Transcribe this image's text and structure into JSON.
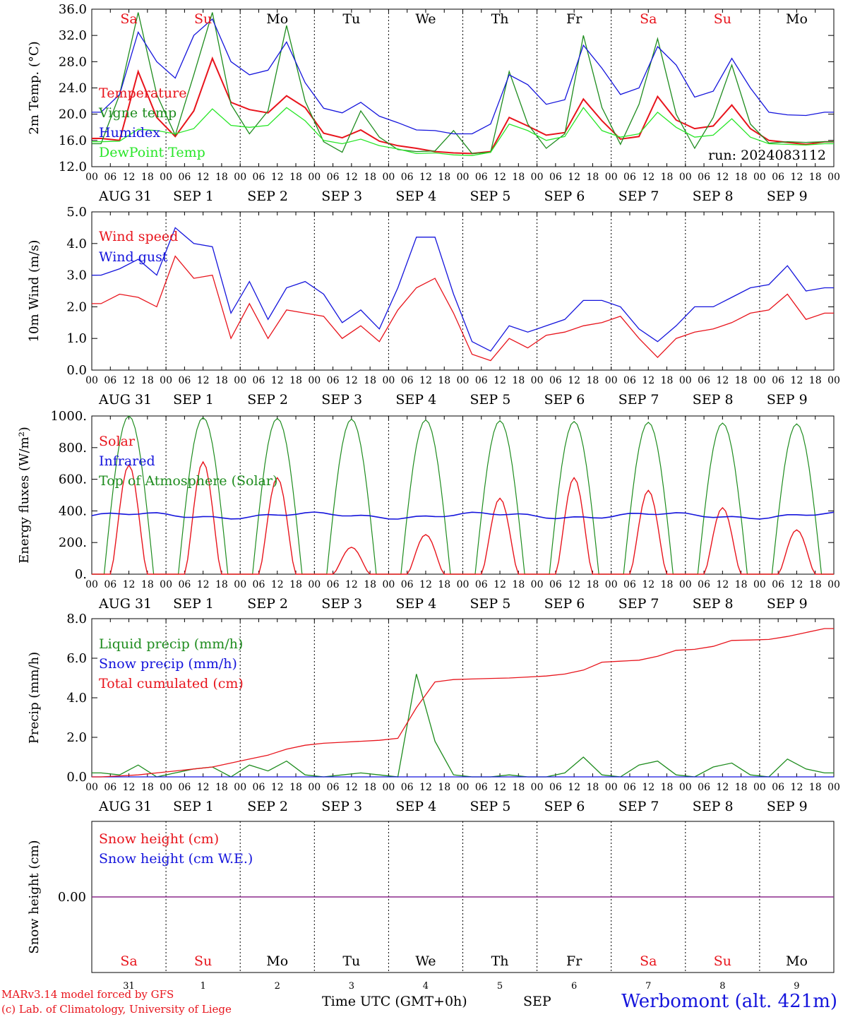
{
  "run_label": "run: 2024083112",
  "days": [
    "AUG 31",
    "SEP  1",
    "SEP  2",
    "SEP  3",
    "SEP  4",
    "SEP  5",
    "SEP  6",
    "SEP  7",
    "SEP  8",
    "SEP  9"
  ],
  "day_numbers": [
    "31",
    "1",
    "2",
    "3",
    "4",
    "5",
    "6",
    "7",
    "8",
    "9"
  ],
  "weekdays": [
    {
      "label": "Sa",
      "color": "#e8141c"
    },
    {
      "label": "Su",
      "color": "#e8141c"
    },
    {
      "label": "Mo",
      "color": "#000000"
    },
    {
      "label": "Tu",
      "color": "#000000"
    },
    {
      "label": "We",
      "color": "#000000"
    },
    {
      "label": "Th",
      "color": "#000000"
    },
    {
      "label": "Fr",
      "color": "#000000"
    },
    {
      "label": "Sa",
      "color": "#e8141c"
    },
    {
      "label": "Su",
      "color": "#e8141c"
    },
    {
      "label": "Mo",
      "color": "#000000"
    }
  ],
  "hour_ticks": [
    "00",
    "06",
    "12",
    "18"
  ],
  "footer": {
    "model_line": "MARv3.14 model forced by GFS",
    "lab_line": "(c) Lab. of Climatology, University of Liege",
    "time_label": "Time UTC (GMT+0h)",
    "month_label": "SEP",
    "station": "Werbomont (alt. 421m)"
  },
  "colors": {
    "red": "#e8141c",
    "green": "#1e8c1e",
    "blue": "#1414dc",
    "lightgreen": "#28e628",
    "purple": "#8b2a8b"
  },
  "chart_data": [
    {
      "type": "line",
      "ylabel": "2m Temp. (°C)",
      "ylim": [
        12.0,
        36.0
      ],
      "yticks": [
        "12.0",
        "16.0",
        "20.0",
        "24.0",
        "28.0",
        "32.0",
        "36.0"
      ],
      "x_start": "2024-08-31T00:00Z",
      "x_step_hours": 6,
      "series": [
        {
          "name": "Temperature",
          "color": "#e8141c",
          "values": [
            16.3,
            16.0,
            26.5,
            19.5,
            16.6,
            20.5,
            28.5,
            21.8,
            20.7,
            20.2,
            22.8,
            21.0,
            17.1,
            16.4,
            17.6,
            15.9,
            15.2,
            14.8,
            14.3,
            14.1,
            14.0,
            14.3,
            19.5,
            18.2,
            16.8,
            17.2,
            22.3,
            19.0,
            16.2,
            16.6,
            22.7,
            19.1,
            17.8,
            18.2,
            21.4,
            17.8,
            16.0,
            15.7,
            15.4,
            15.8
          ]
        },
        {
          "name": "Vigne temp",
          "color": "#1e8c1e",
          "values": [
            15.5,
            23.0,
            35.5,
            23.0,
            16.8,
            26.0,
            35.5,
            21.5,
            17.0,
            20.5,
            33.5,
            22.0,
            15.8,
            14.2,
            20.5,
            16.5,
            14.6,
            14.3,
            14.4,
            17.5,
            14.0,
            14.2,
            26.5,
            18.5,
            14.8,
            17.0,
            32.0,
            21.0,
            15.4,
            21.5,
            31.5,
            20.0,
            14.8,
            19.5,
            27.5,
            18.5,
            15.6,
            15.8,
            15.7,
            15.8
          ]
        },
        {
          "name": "Humidex",
          "color": "#1414dc",
          "values": [
            20.3,
            23.0,
            32.5,
            28.0,
            25.5,
            32.0,
            34.5,
            28.0,
            26.0,
            26.7,
            31.0,
            24.8,
            20.9,
            20.2,
            21.8,
            19.7,
            18.7,
            17.6,
            17.5,
            17.0,
            17.0,
            18.5,
            26.0,
            24.5,
            21.5,
            22.2,
            30.5,
            27.0,
            23.0,
            24.0,
            30.3,
            27.5,
            22.6,
            23.5,
            28.5,
            24.0,
            20.3,
            19.9,
            19.8,
            20.3
          ]
        },
        {
          "name": "DewPoint Temp",
          "color": "#28e628",
          "values": [
            15.8,
            15.9,
            17.7,
            17.5,
            17.0,
            17.8,
            20.8,
            18.3,
            18.0,
            18.3,
            21.0,
            19.0,
            16.0,
            15.5,
            16.2,
            15.2,
            14.7,
            14.0,
            14.1,
            13.8,
            13.7,
            14.2,
            18.5,
            17.5,
            16.0,
            16.6,
            21.0,
            17.5,
            16.5,
            17.0,
            20.3,
            18.0,
            16.5,
            16.8,
            19.3,
            16.5,
            15.5,
            15.4,
            15.3,
            15.5
          ]
        }
      ]
    },
    {
      "type": "line",
      "ylabel": "10m Wind (m/s)",
      "ylim": [
        0.0,
        5.0
      ],
      "yticks": [
        "0.0",
        "1.0",
        "2.0",
        "3.0",
        "4.0",
        "5.0"
      ],
      "x_start": "2024-08-31T00:00Z",
      "x_step_hours": 6,
      "series": [
        {
          "name": "Wind speed",
          "color": "#e8141c",
          "values": [
            2.1,
            2.4,
            2.3,
            2.0,
            3.6,
            2.9,
            3.0,
            1.0,
            2.1,
            1.0,
            1.9,
            1.8,
            1.7,
            1.0,
            1.4,
            0.9,
            1.9,
            2.6,
            2.9,
            1.8,
            0.5,
            0.3,
            1.0,
            0.7,
            1.1,
            1.2,
            1.4,
            1.5,
            1.7,
            1.0,
            0.4,
            1.0,
            1.2,
            1.3,
            1.5,
            1.8,
            1.9,
            2.4,
            1.6,
            1.8
          ]
        },
        {
          "name": "Wind gust",
          "color": "#1414dc",
          "values": [
            3.0,
            3.2,
            3.5,
            3.0,
            4.5,
            4.0,
            3.9,
            1.8,
            2.8,
            1.6,
            2.6,
            2.8,
            2.4,
            1.5,
            1.9,
            1.3,
            2.6,
            4.2,
            4.2,
            2.4,
            0.9,
            0.6,
            1.4,
            1.2,
            1.4,
            1.6,
            2.2,
            2.2,
            2.0,
            1.3,
            0.9,
            1.4,
            2.0,
            2.0,
            2.3,
            2.6,
            2.7,
            3.3,
            2.5,
            2.6
          ]
        }
      ]
    },
    {
      "type": "line",
      "ylabel": "Energy fluxes (W/m²)",
      "ylim": [
        0,
        1000
      ],
      "yticks": [
        "0.",
        "200.",
        "400.",
        "600.",
        "800.",
        "1000."
      ],
      "x_start": "2024-08-31T00:00Z",
      "x_step_hours": 3,
      "series": [
        {
          "name": "Solar",
          "color": "#e8141c",
          "peaks": [
            690,
            710,
            610,
            170,
            250,
            480,
            610,
            530,
            420,
            280
          ]
        },
        {
          "name": "Infrared",
          "color": "#1414dc",
          "baseline": 370
        },
        {
          "name": "Top of Atmosphere (Solar)",
          "color": "#1e8c1e",
          "peaks": [
            1000,
            990,
            985,
            980,
            975,
            970,
            965,
            960,
            955,
            950
          ]
        }
      ]
    },
    {
      "type": "line",
      "ylabel": "Precip (mm/h)",
      "ylim": [
        0.0,
        8.0
      ],
      "yticks": [
        "0.0",
        "2.0",
        "4.0",
        "6.0",
        "8.0"
      ],
      "x_start": "2024-08-31T00:00Z",
      "x_step_hours": 6,
      "series": [
        {
          "name": "Liquid precip (mm/h)",
          "color": "#1e8c1e",
          "values": [
            0.2,
            0.1,
            0.6,
            0.0,
            0.2,
            0.4,
            0.5,
            0.0,
            0.6,
            0.3,
            0.8,
            0.1,
            0.0,
            0.1,
            0.2,
            0.1,
            0.0,
            5.2,
            1.8,
            0.1,
            0.0,
            0.0,
            0.1,
            0.0,
            0.0,
            0.2,
            1.0,
            0.1,
            0.0,
            0.6,
            0.8,
            0.1,
            0.0,
            0.5,
            0.7,
            0.1,
            0.0,
            0.9,
            0.4,
            0.2
          ]
        },
        {
          "name": "Snow precip (mm/h)",
          "color": "#1414dc",
          "values": [
            0,
            0,
            0,
            0,
            0,
            0,
            0,
            0,
            0,
            0,
            0,
            0,
            0,
            0,
            0,
            0,
            0,
            0,
            0,
            0,
            0,
            0,
            0,
            0,
            0,
            0,
            0,
            0,
            0,
            0,
            0,
            0,
            0,
            0,
            0,
            0,
            0,
            0,
            0,
            0
          ]
        },
        {
          "name": "Total cumulated (cm)",
          "color": "#e8141c",
          "values": [
            0.0,
            0.05,
            0.1,
            0.2,
            0.3,
            0.4,
            0.5,
            0.7,
            0.9,
            1.1,
            1.4,
            1.6,
            1.7,
            1.75,
            1.8,
            1.85,
            1.95,
            3.5,
            4.8,
            4.92,
            4.95,
            4.98,
            5.0,
            5.05,
            5.1,
            5.2,
            5.4,
            5.8,
            5.85,
            5.9,
            6.1,
            6.4,
            6.45,
            6.6,
            6.9,
            6.92,
            6.95,
            7.1,
            7.3,
            7.5
          ]
        }
      ]
    },
    {
      "type": "line",
      "ylabel": "Snow height (cm)",
      "yticks": [
        "0.00"
      ],
      "series": [
        {
          "name": "Snow height (cm)",
          "color": "#e8141c",
          "values": [
            0.0,
            0.0
          ]
        },
        {
          "name": "Snow height (cm W.E.)",
          "color": "#1414dc",
          "values": [
            0.0,
            0.0
          ]
        }
      ]
    }
  ]
}
